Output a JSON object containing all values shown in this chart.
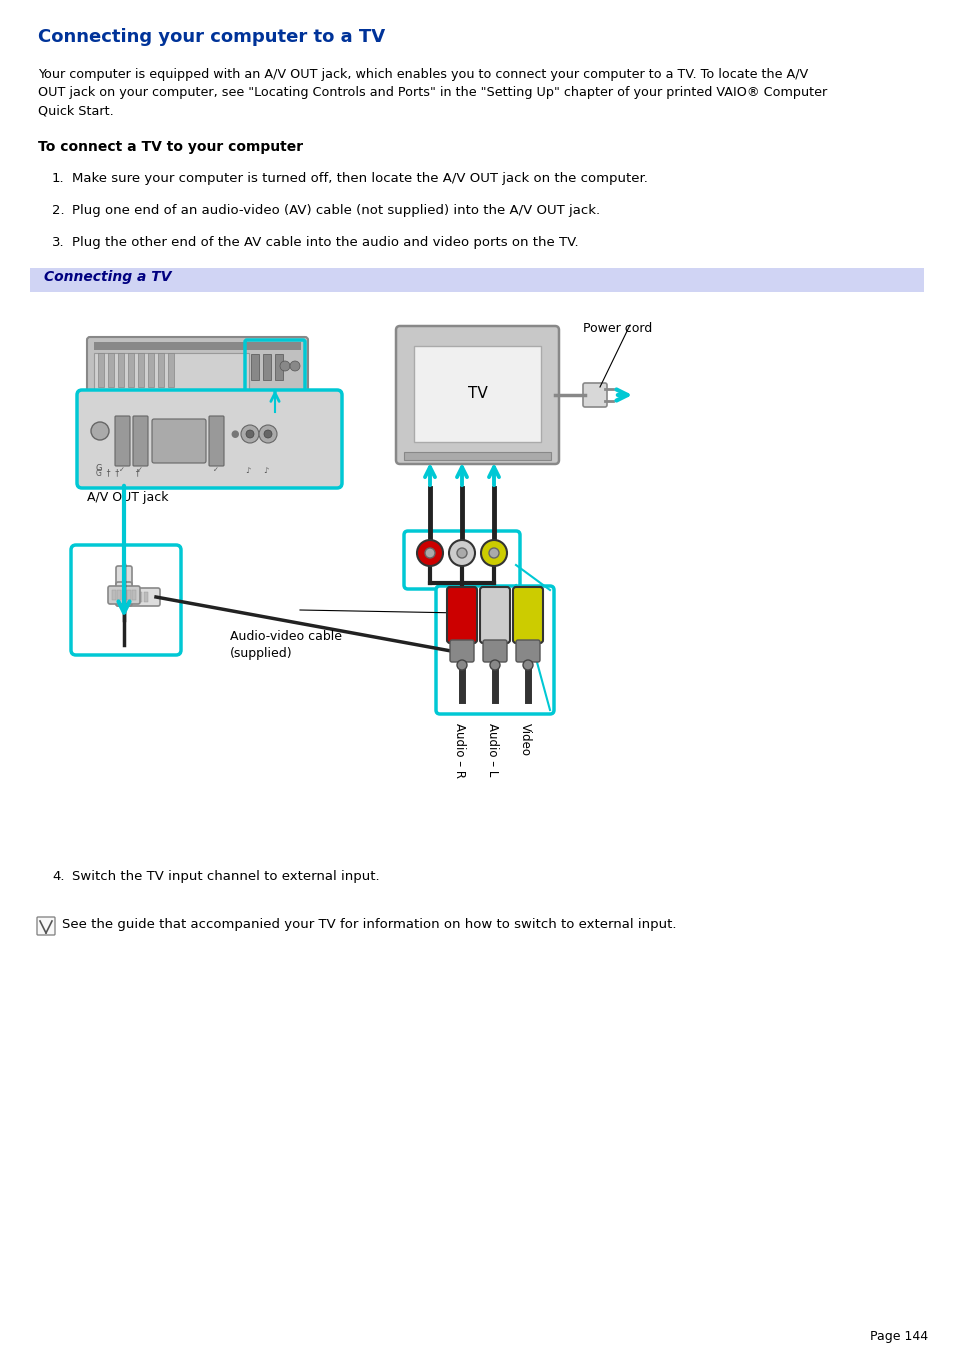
{
  "title": "Connecting your computer to a TV",
  "title_color": "#003399",
  "background_color": "#ffffff",
  "page_number": "Page 144",
  "body_line1": "Your computer is equipped with an A/V OUT jack, which enables you to connect your computer to a TV. To locate the A/V",
  "body_line2": "OUT jack on your computer, see \"Locating Controls and Ports\" in the \"Setting Up\" chapter of your printed VAIO® Computer",
  "body_line3": "Quick Start.",
  "subtitle": "To connect a TV to your computer",
  "steps": [
    "Make sure your computer is turned off, then locate the A/V OUT jack on the computer.",
    "Plug one end of an audio-video (AV) cable (not supplied) into the A/V OUT jack.",
    "Plug the other end of the AV cable into the audio and video ports on the TV."
  ],
  "banner_text": "Connecting a TV",
  "banner_bg": "#d0d4f4",
  "banner_text_color": "#000080",
  "step4": "Switch the TV input channel to external input.",
  "note_text": "See the guide that accompanied your TV for information on how to switch to external input.",
  "text_color": "#000000",
  "cyan_color": "#00c8d4",
  "gray_laptop": "#b8b8b8",
  "gray_panel": "#d0d0d0",
  "gray_tv": "#c8c8c8"
}
